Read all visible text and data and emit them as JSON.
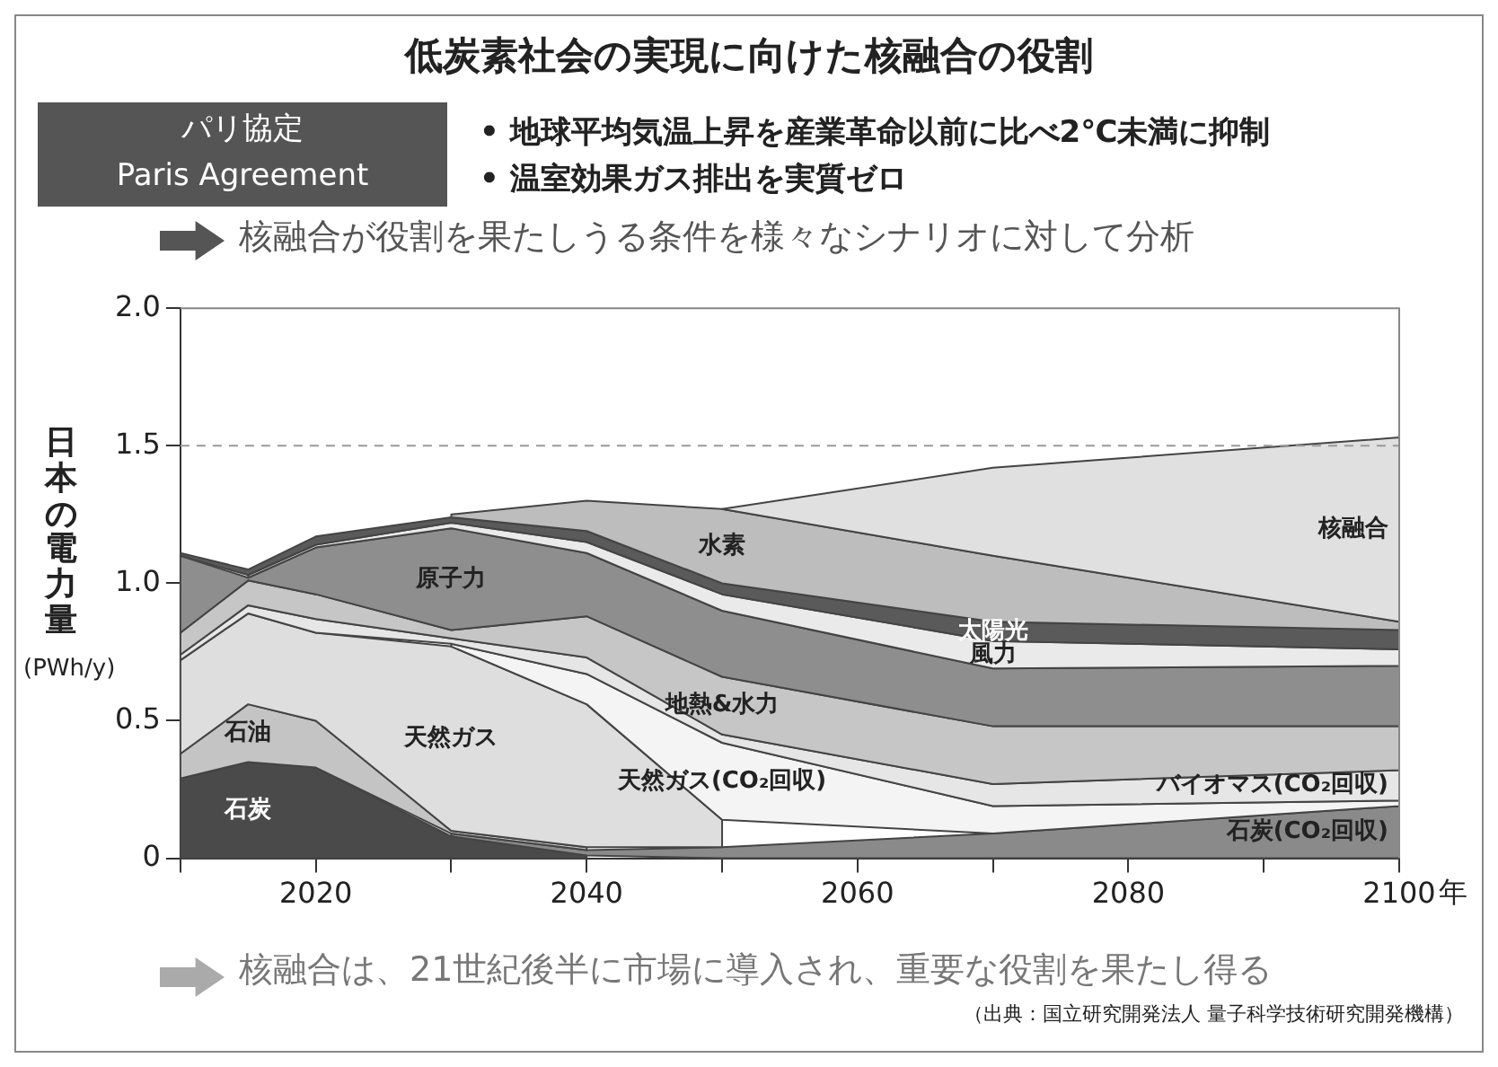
{
  "chart_data": {
    "type": "area",
    "title": "低炭素社会の実現に向けた核融合の役割",
    "ylabel": "日本の電力量",
    "xlabel": "年",
    "stacked": true,
    "legend": false,
    "annotations": [
      "パリ協定",
      "Paris Agreement",
      "• 地球平均気温上昇を産業革命以前に比べ2℃未満に抑制",
      "• 温室効果ガス排出を実質ゼロ",
      "核融合が役割を果たしうる条件を様々なシナリオに対して分析",
      "核融合は、21世紀後半に市場に導入され、重要な役割を果たし得る",
      "（出典：国立研究開発法人 量子科学技術研究開発機構）",
      "(PWh/y)"
    ],
    "x": [
      2010,
      2015,
      2020,
      2030,
      2040,
      2050,
      2070,
      2100
    ],
    "xlim": [
      2010,
      2100
    ],
    "xticks": [
      {
        "value": 2010,
        "label": null
      },
      2020,
      {
        "value": 2030,
        "label": null
      },
      2040,
      {
        "value": 2050,
        "label": null
      },
      2060,
      {
        "value": 2070,
        "label": null
      },
      2080,
      {
        "value": 2090,
        "label": null
      },
      2100
    ],
    "ylim": [
      0,
      2
    ],
    "yticks": [
      0,
      0.5,
      {
        "value": 1,
        "label": "1.0"
      },
      1.5,
      {
        "value": 2,
        "label": "2.0"
      }
    ],
    "ref_lines": [
      {
        "axis": "y",
        "value": 1.5,
        "color": "#999999",
        "line_style": "dashed"
      }
    ],
    "series": [
      {
        "name": "石炭",
        "color": "#4a4a4a",
        "values": [
          0.29,
          0.35,
          0.33,
          0.08,
          0.01,
          null,
          null,
          null
        ]
      },
      {
        "name": "石炭(CO₂回収)",
        "color": "#8a8a8a",
        "values": [
          null,
          null,
          null,
          0.01,
          0.02,
          0.04,
          0.09,
          0.19
        ]
      },
      {
        "name": "石油",
        "color": "#c4c4c4",
        "values": [
          0.09,
          0.21,
          0.17,
          0.01,
          0.01,
          null,
          null,
          null
        ]
      },
      {
        "name": "天然ガス",
        "color": "#dedede",
        "values": [
          0.34,
          0.33,
          0.32,
          0.67,
          0.52,
          0.1,
          null,
          null
        ]
      },
      {
        "name": "天然ガス(CO₂回収)",
        "color": "#f4f4f4",
        "values": [
          null,
          null,
          null,
          0.01,
          0.11,
          0.28,
          0.1,
          0.02
        ]
      },
      {
        "name": "バイオマス(CO₂回収)",
        "color": "#e6e6e6",
        "values": [
          0.02,
          0.03,
          0.05,
          0.02,
          0.06,
          0.03,
          0.08,
          0.11
        ]
      },
      {
        "name": "地熱&水力",
        "color": "#c6c6c6",
        "values": [
          0.08,
          0.09,
          0.09,
          0.03,
          0.15,
          0.21,
          0.21,
          0.16
        ]
      },
      {
        "name": "原子力",
        "color": "#8e8e8e",
        "values": [
          0.28,
          0.01,
          0.17,
          0.37,
          0.23,
          0.24,
          0.21,
          0.22
        ]
      },
      {
        "name": "風力",
        "color": "#eaeaea",
        "values": [
          null,
          0.01,
          0.01,
          0.02,
          0.04,
          0.06,
          0.1,
          0.06
        ]
      },
      {
        "name": "太陽光",
        "color": "#5a5a5a",
        "values": [
          0.01,
          0.02,
          0.03,
          0.02,
          0.04,
          0.04,
          0.07,
          0.07
        ]
      },
      {
        "name": "水素",
        "color": "#bdbdbd",
        "values": [
          null,
          null,
          null,
          0.01,
          0.11,
          0.27,
          0.24,
          0.03
        ]
      },
      {
        "name": "核融合",
        "color": "#e0e0e0",
        "values": [
          null,
          null,
          null,
          null,
          null,
          0,
          0.32,
          0.67
        ]
      }
    ]
  }
}
